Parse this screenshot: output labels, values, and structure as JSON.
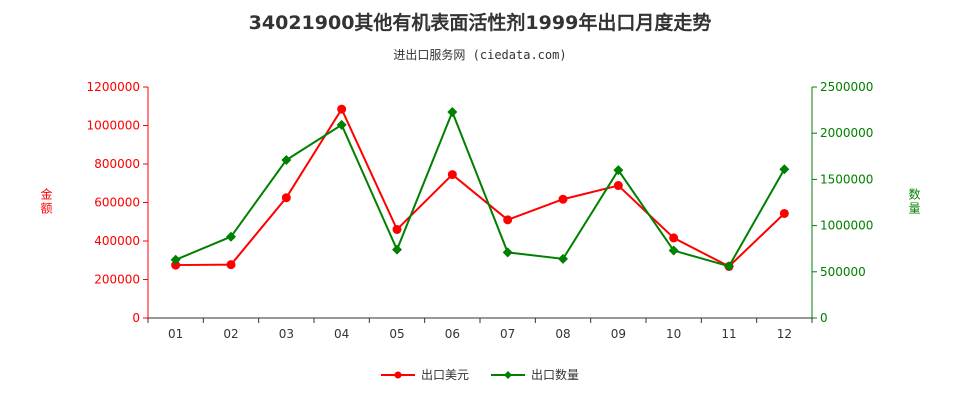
{
  "chart_data": {
    "type": "line",
    "title": "34021900其他有机表面活性剂1999年出口月度走势",
    "subtitle": "进出口服务网 (ciedata.com)",
    "categories": [
      "01",
      "02",
      "03",
      "04",
      "05",
      "06",
      "07",
      "08",
      "09",
      "10",
      "11",
      "12"
    ],
    "ylabel_left": "金额",
    "ylabel_right": "数量",
    "ylim_left": [
      0,
      1200000
    ],
    "ylim_right": [
      0,
      2500000
    ],
    "yticks_left": [
      0,
      200000,
      400000,
      600000,
      800000,
      1000000,
      1200000
    ],
    "yticks_right": [
      0,
      500000,
      1000000,
      1500000,
      2000000,
      2500000
    ],
    "series": [
      {
        "name": "出口美元",
        "axis": "left",
        "color": "#ff0000",
        "values": [
          275000,
          277000,
          625000,
          1085000,
          460000,
          745000,
          510000,
          617000,
          688000,
          416000,
          268000,
          543000
        ]
      },
      {
        "name": "出口数量",
        "axis": "right",
        "color": "#008000",
        "values": [
          630000,
          880000,
          1710000,
          2090000,
          740000,
          2230000,
          710000,
          640000,
          1600000,
          730000,
          560000,
          1610000
        ]
      }
    ],
    "grid": false,
    "legend_position": "bottom-center"
  }
}
